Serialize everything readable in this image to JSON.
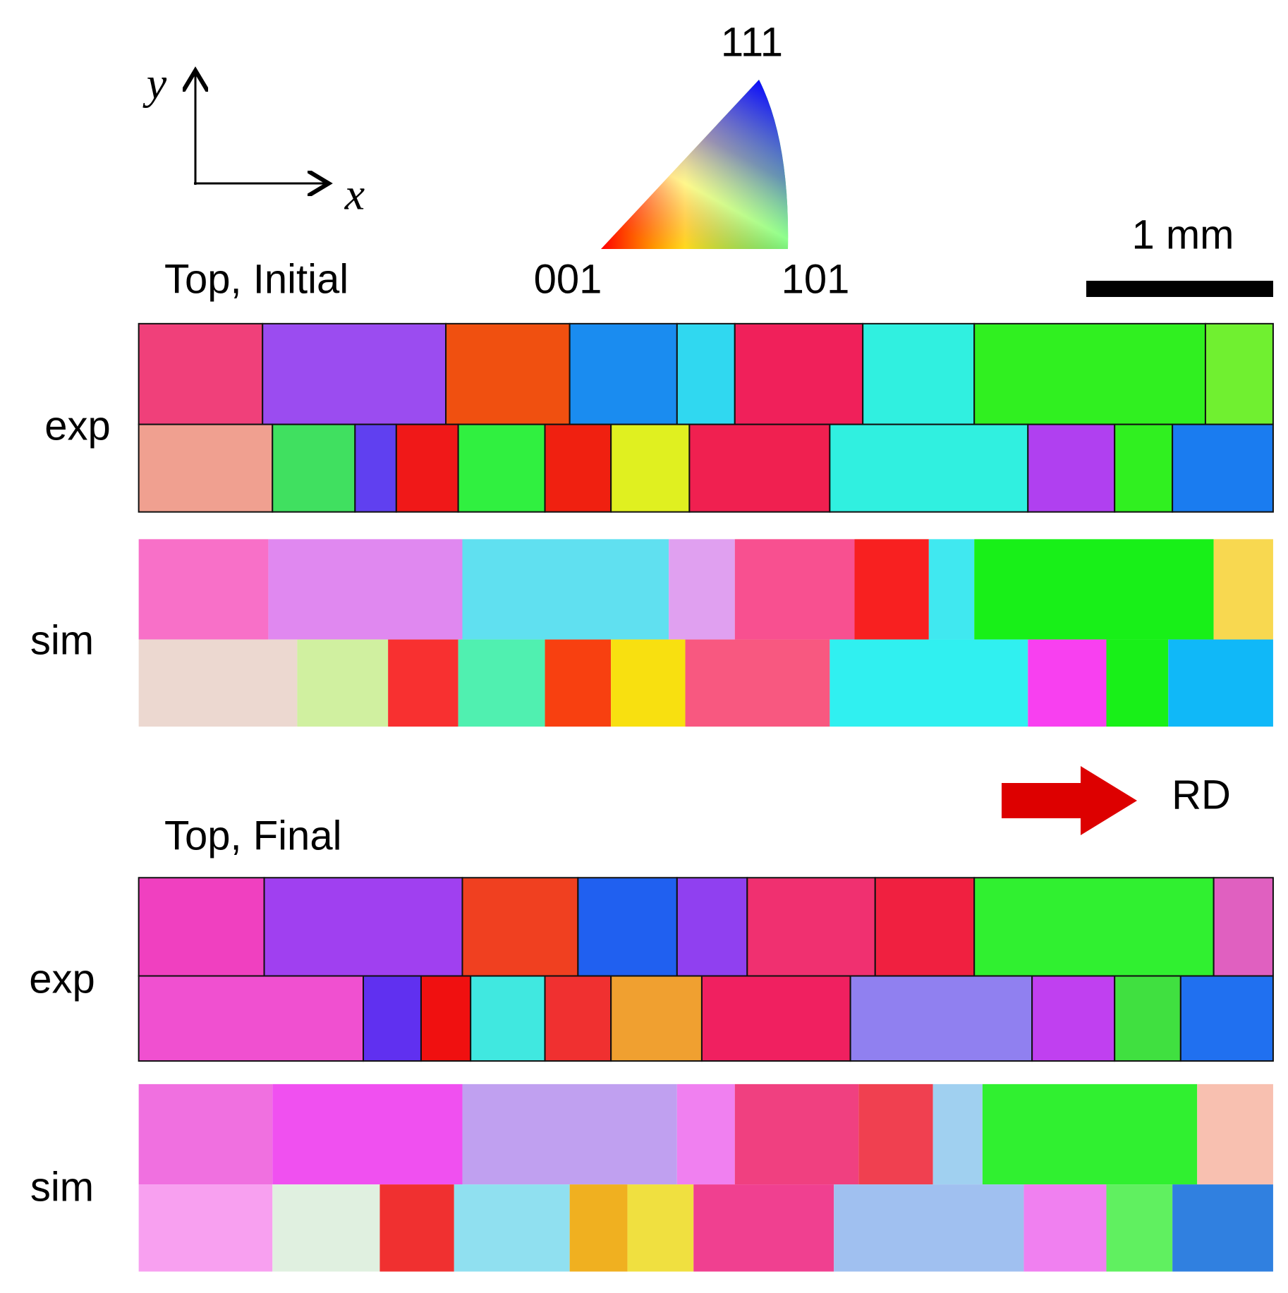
{
  "axes": {
    "y": "y",
    "x": "x"
  },
  "ipf_key": {
    "top": "111",
    "left": "001",
    "right": "101"
  },
  "scale_bar": "1 mm",
  "initial": {
    "title": "Top, Initial",
    "rows": [
      "exp",
      "sim"
    ]
  },
  "direction": "RD",
  "final": {
    "title": "Top, Final",
    "rows": [
      "exp",
      "sim"
    ]
  }
}
